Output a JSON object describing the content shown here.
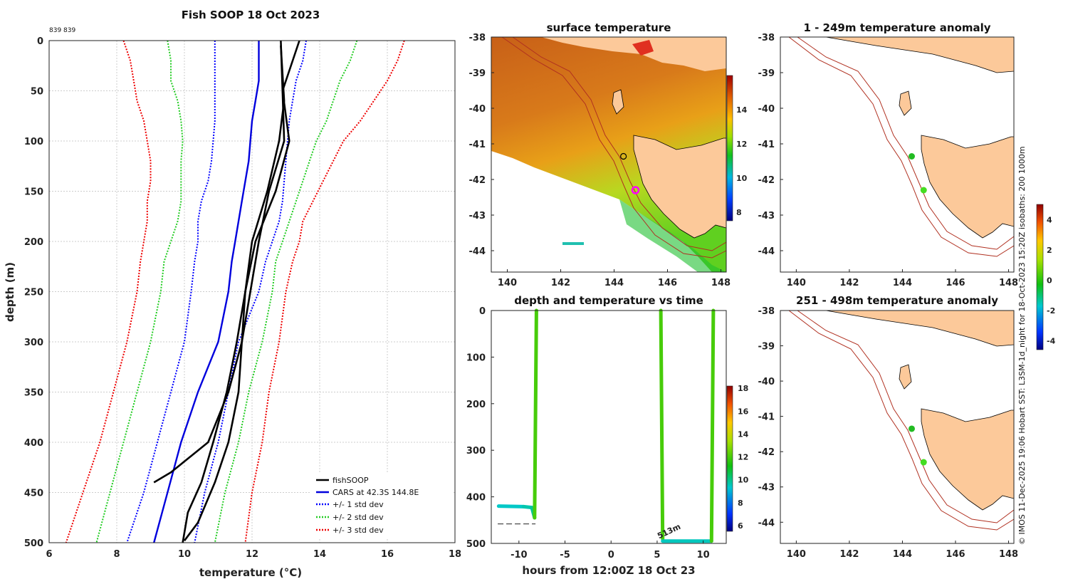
{
  "figure": {
    "side_text": "© IMOS 11-Dec-2025 19:06 Hobart SST: L3SM-1d_night for 18-Oct-2023 15:20Z isobaths: 200  1000m",
    "record_ids": "839 839"
  },
  "colors": {
    "fishsoop": "#000000",
    "cars": "#0000dd",
    "std1": "#0000ff",
    "std2": "#22cc22",
    "std3": "#ee0000",
    "land": "#fcc99a",
    "isobath": "#b03020",
    "grid": "#cccccc"
  },
  "chart_data": [
    {
      "id": "profile",
      "type": "line",
      "title": "Fish SOOP 18 Oct 2023",
      "xlabel": "temperature (°C)",
      "ylabel": "depth (m)",
      "xlim": [
        6,
        18
      ],
      "ylim": [
        500,
        0
      ],
      "xticks": [
        "6",
        "8",
        "10",
        "12",
        "14",
        "16",
        "18"
      ],
      "yticks": [
        "0",
        "50",
        "100",
        "150",
        "200",
        "250",
        "300",
        "350",
        "400",
        "450",
        "500"
      ],
      "legend": [
        "fishSOOP",
        "CARS at 42.3S 144.8E",
        "+/- 1 std dev",
        "+/- 2 std dev",
        "+/- 3 std dev"
      ],
      "depth": [
        0,
        20,
        40,
        60,
        80,
        100,
        120,
        140,
        160,
        180,
        200,
        220,
        250,
        300,
        350,
        400,
        450,
        500
      ],
      "cars": [
        12.2,
        12.2,
        12.2,
        12.1,
        12.0,
        11.95,
        11.9,
        11.8,
        11.7,
        11.6,
        11.5,
        11.4,
        11.3,
        11.0,
        10.4,
        9.9,
        9.5,
        9.1
      ],
      "plus1": [
        13.6,
        13.5,
        13.3,
        13.2,
        13.1,
        13.05,
        13.0,
        12.95,
        12.9,
        12.8,
        12.6,
        12.4,
        12.2,
        11.6,
        11.3,
        11.0,
        10.6,
        10.3
      ],
      "minus1": [
        10.9,
        10.9,
        10.9,
        10.9,
        10.9,
        10.85,
        10.8,
        10.7,
        10.5,
        10.4,
        10.4,
        10.3,
        10.2,
        10.0,
        9.6,
        9.2,
        8.8,
        8.3
      ],
      "plus2": [
        15.1,
        14.9,
        14.6,
        14.4,
        14.2,
        13.9,
        13.7,
        13.5,
        13.3,
        13.1,
        12.9,
        12.7,
        12.6,
        12.3,
        11.9,
        11.6,
        11.2,
        10.9
      ],
      "minus2": [
        9.5,
        9.6,
        9.6,
        9.8,
        9.9,
        9.95,
        9.9,
        9.9,
        9.9,
        9.8,
        9.6,
        9.4,
        9.3,
        9.0,
        8.6,
        8.2,
        7.8,
        7.4
      ],
      "plus3": [
        16.5,
        16.3,
        16.0,
        15.6,
        15.2,
        14.7,
        14.4,
        14.1,
        13.8,
        13.5,
        13.4,
        13.2,
        13.0,
        12.8,
        12.5,
        12.3,
        12.0,
        11.8
      ],
      "minus3": [
        8.2,
        8.4,
        8.5,
        8.6,
        8.8,
        8.9,
        9.0,
        9.0,
        8.9,
        8.9,
        8.8,
        8.7,
        8.6,
        8.3,
        7.9,
        7.5,
        7.0,
        6.5
      ],
      "casts": [
        {
          "depth": [
            0,
            50,
            100,
            150,
            200,
            250,
            300,
            350,
            400,
            430,
            440
          ],
          "temp": [
            12.85,
            12.9,
            12.95,
            12.5,
            12.2,
            11.95,
            11.7,
            11.3,
            10.7,
            9.6,
            9.1
          ]
        },
        {
          "depth": [
            0,
            50,
            100,
            150,
            200,
            250,
            300,
            350,
            400,
            440,
            470,
            500
          ],
          "temp": [
            13.4,
            12.9,
            13.1,
            12.7,
            12.1,
            11.8,
            11.55,
            11.25,
            10.85,
            10.5,
            10.1,
            9.95
          ]
        },
        {
          "depth": [
            5,
            60,
            100,
            150,
            200,
            250,
            300,
            350,
            400,
            440,
            480,
            498
          ],
          "temp": [
            12.85,
            12.95,
            12.8,
            12.45,
            12.0,
            11.8,
            11.7,
            11.6,
            11.3,
            10.9,
            10.4,
            10.0
          ]
        }
      ]
    },
    {
      "id": "sst",
      "type": "heatmap",
      "title": "surface temperature",
      "xlim": [
        139.4,
        148.2
      ],
      "ylim": [
        -44.6,
        -38
      ],
      "xticks": [
        "140",
        "142",
        "144",
        "146",
        "148"
      ],
      "yticks": [
        "-38",
        "-39",
        "-40",
        "-41",
        "-42",
        "-43",
        "-44"
      ],
      "colorbar_ticks": [
        "8",
        "10",
        "12",
        "14"
      ],
      "colorbar_range": [
        7.5,
        16
      ],
      "markers": [
        {
          "lon": 144.35,
          "lat": -41.35,
          "style": "open-circle"
        },
        {
          "lon": 144.8,
          "lat": -42.3,
          "style": "magenta-ring"
        }
      ]
    },
    {
      "id": "timeseries",
      "type": "scatter",
      "title": "depth and temperature vs time",
      "xlabel": "hours from 12:00Z 18 Oct 23",
      "xlim": [
        -13,
        12.5
      ],
      "ylim": [
        500,
        0
      ],
      "xticks": [
        "-10",
        "-5",
        "0",
        "5",
        "10"
      ],
      "yticks": [
        "0",
        "100",
        "200",
        "300",
        "400",
        "500"
      ],
      "colorbar_ticks": [
        "6",
        "8",
        "10",
        "12",
        "14",
        "16",
        "18"
      ],
      "colorbar_range": [
        5.5,
        18.2
      ],
      "bottom_label": "513m",
      "reference_depth": 458,
      "segments": [
        {
          "t": [
            -12.2,
            -9.5,
            -8.6,
            -8.3
          ],
          "d": [
            420,
            421,
            423,
            445
          ],
          "temp": [
            9.3,
            9.5,
            9.8,
            10.0
          ]
        },
        {
          "t": [
            -8.3,
            -8.1
          ],
          "d": [
            445,
            0
          ],
          "temp": [
            10.2,
            13.8
          ]
        },
        {
          "t": [
            5.4,
            5.6
          ],
          "d": [
            0,
            490
          ],
          "temp": [
            13.5,
            10.5
          ]
        },
        {
          "t": [
            5.6,
            10.9
          ],
          "d": [
            495,
            495
          ],
          "temp": [
            9.5,
            9.5
          ]
        },
        {
          "t": [
            10.9,
            11.1
          ],
          "d": [
            495,
            0
          ],
          "temp": [
            10.5,
            13.5
          ]
        }
      ]
    },
    {
      "id": "anom1",
      "type": "heatmap",
      "title": "1 - 249m temperature anomaly",
      "xlim": [
        139.4,
        148.2
      ],
      "ylim": [
        -44.6,
        -38
      ],
      "xticks": [
        "140",
        "142",
        "144",
        "146",
        "148"
      ],
      "yticks": [
        "-38",
        "-39",
        "-40",
        "-41",
        "-42",
        "-43",
        "-44"
      ],
      "colorbar_ticks": [
        "-4",
        "-2",
        "0",
        "2",
        "4"
      ],
      "colorbar_range": [
        -4.6,
        5
      ],
      "markers": [
        {
          "lon": 144.35,
          "lat": -41.35
        },
        {
          "lon": 144.8,
          "lat": -42.3
        }
      ]
    },
    {
      "id": "anom2",
      "type": "heatmap",
      "title": "251 - 498m temperature anomaly",
      "xlim": [
        139.4,
        148.2
      ],
      "ylim": [
        -44.6,
        -38
      ],
      "xticks": [
        "140",
        "142",
        "144",
        "146",
        "148"
      ],
      "yticks": [
        "-38",
        "-39",
        "-40",
        "-41",
        "-42",
        "-43",
        "-44"
      ],
      "markers": [
        {
          "lon": 144.35,
          "lat": -41.35
        },
        {
          "lon": 144.8,
          "lat": -42.3
        }
      ]
    }
  ]
}
